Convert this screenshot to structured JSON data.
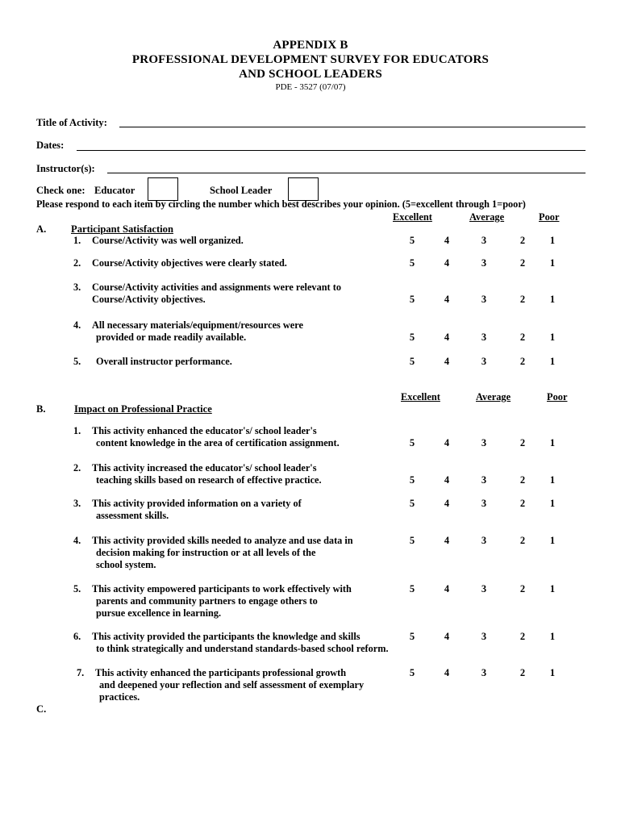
{
  "colors": {
    "text": "#000000",
    "background": "#ffffff"
  },
  "header": {
    "appendix": "APPENDIX B",
    "title_line1": "PROFESSIONAL DEVELOPMENT SURVEY FOR EDUCATORS",
    "title_line2": "AND SCHOOL LEADERS",
    "form_code": "PDE - 3527 (07/07)"
  },
  "fields": {
    "title_of_activity": {
      "label": "Title of Activity:",
      "value": ""
    },
    "dates": {
      "label": "Dates:",
      "value": ""
    },
    "instructors": {
      "label": "Instructor(s):",
      "value": ""
    }
  },
  "check_one": {
    "label": "Check one:",
    "educator_label": "Educator",
    "school_leader_label": "School Leader",
    "educator_checked": false,
    "school_leader_checked": false
  },
  "instruction": "Please respond to each item by circling the number which best describes your opinion. (5=excellent through 1=poor)",
  "rating_scale": {
    "excellent": "Excellent",
    "average": "Average",
    "poor": "Poor",
    "values": [
      "5",
      "4",
      "3",
      "2",
      "1"
    ]
  },
  "sections": {
    "a": {
      "letter": "A.",
      "title": "Participant Satisfaction",
      "items": [
        {
          "num": "1.",
          "lines": [
            "Course/Activity was well organized."
          ]
        },
        {
          "num": "2.",
          "lines": [
            "Course/Activity objectives were clearly stated."
          ]
        },
        {
          "num": "3.",
          "lines": [
            "Course/Activity activities and assignments were relevant to",
            "Course/Activity objectives."
          ]
        },
        {
          "num": "4.",
          "lines": [
            "All necessary materials/equipment/resources were",
            "provided or made readily available."
          ]
        },
        {
          "num": "5.",
          "lines": [
            "Overall instructor performance."
          ]
        }
      ]
    },
    "b": {
      "letter": "B.",
      "title": "Impact on Professional Practice",
      "items": [
        {
          "num": "1.",
          "lines": [
            "This activity enhanced the educator's/ school leader's",
            "content knowledge in the area of certification assignment."
          ]
        },
        {
          "num": "2.",
          "lines": [
            "This activity increased the educator's/ school leader's",
            "teaching skills based on research of effective practice."
          ]
        },
        {
          "num": "3.",
          "lines": [
            "This activity provided information on a variety of",
            "assessment skills."
          ]
        },
        {
          "num": "4.",
          "lines": [
            "This activity provided skills needed to analyze and use data in",
            "decision making for instruction or at all levels of the",
            "school system."
          ]
        },
        {
          "num": "5.",
          "lines": [
            "This activity empowered participants to work effectively with",
            "parents and community partners to engage others to",
            "pursue excellence in learning."
          ]
        },
        {
          "num": "6.",
          "lines": [
            "This activity provided the participants the knowledge and skills",
            "to think strategically and understand standards-based school reform."
          ]
        },
        {
          "num": "7.",
          "lines": [
            "This activity enhanced the participants professional growth",
            "and deepened your reflection and self assessment of exemplary",
            "practices."
          ]
        }
      ]
    },
    "c": {
      "letter": "C."
    }
  }
}
